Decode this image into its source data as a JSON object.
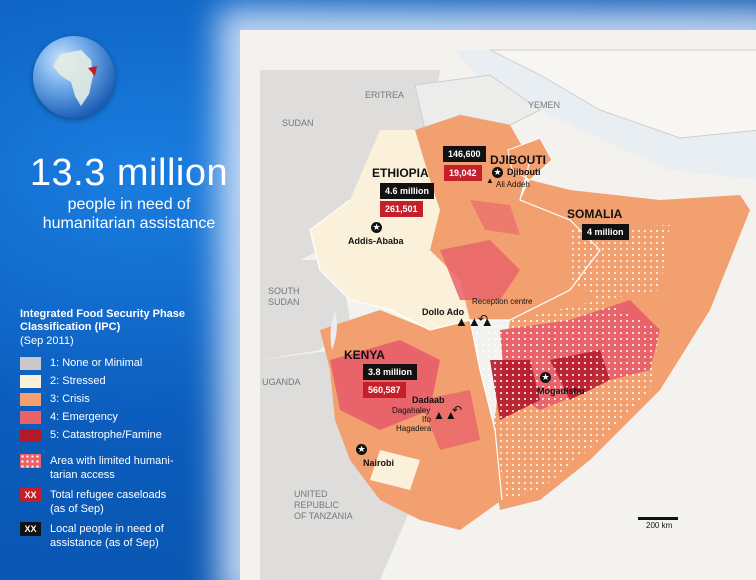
{
  "headline": {
    "number": "13.3 million",
    "line1": "people in need of",
    "line2": "humanitarian assistance"
  },
  "legend": {
    "title_line1": "Integrated Food Security Phase",
    "title_line2": "Classification (IPC)",
    "date": "(Sep 2011)",
    "phases": [
      {
        "label": "1: None or Minimal",
        "color": "#c9c9c9"
      },
      {
        "label": "2: Stressed",
        "color": "#fbf1da"
      },
      {
        "label": "3: Crisis",
        "color": "#f3a070"
      },
      {
        "label": "4: Emergency",
        "color": "#e8636a"
      },
      {
        "label": "5: Catastrophe/Famine",
        "color": "#b4182a"
      }
    ],
    "limited_access_line1": "Area with limited humani-",
    "limited_access_line2": "tarian access",
    "badge_text": "XX",
    "refugee_line1": "Total refugee caseloads",
    "refugee_line2": "(as of Sep)",
    "local_line1": "Local people in need of",
    "local_line2": "assistance (as of Sep)"
  },
  "map": {
    "neighbors": {
      "eritrea": "ERITREA",
      "yemen": "YEMEN",
      "sudan": "SUDAN",
      "south_sudan_1": "SOUTH",
      "south_sudan_2": "SUDAN",
      "uganda": "UGANDA",
      "tanzania_1": "UNITED",
      "tanzania_2": "REPUBLIC",
      "tanzania_3": "OF TANZANIA"
    },
    "countries": {
      "ethiopia": "ETHIOPIA",
      "djibouti": "DJIBOUTI",
      "somalia": "SOMALIA",
      "kenya": "KENYA"
    },
    "figures": {
      "djibouti_local": "146,600",
      "djibouti_refugee": "19,042",
      "ethiopia_local": "4.6 million",
      "ethiopia_refugee": "261,501",
      "somalia_local": "4 million",
      "kenya_local": "3.8 million",
      "kenya_refugee": "560,587"
    },
    "places": {
      "djibouti_city": "Djibouti",
      "ali_addeh": "Ali Addeh",
      "addis_ababa": "Addis-Ababa",
      "reception_centre": "Reception centre",
      "dollo_ado": "Dollo Ado",
      "mogadishu": "Mogadishu",
      "dadaab": "Dadaab",
      "dagahaley": "Dagahaley",
      "ifo": "Ifo",
      "hagadera": "Hagadera",
      "nairobi": "Nairobi"
    },
    "scale": "200 km"
  }
}
